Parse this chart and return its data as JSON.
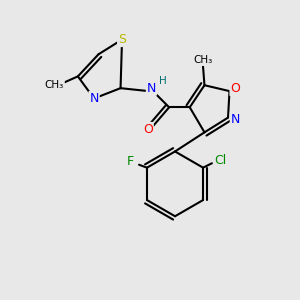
{
  "bg_color": "#e8e8e8",
  "atom_colors": {
    "S": "#b8b800",
    "N": "#0000ff",
    "O": "#ff0000",
    "F": "#008800",
    "Cl": "#008800",
    "H": "#007070",
    "C": "#000000"
  }
}
